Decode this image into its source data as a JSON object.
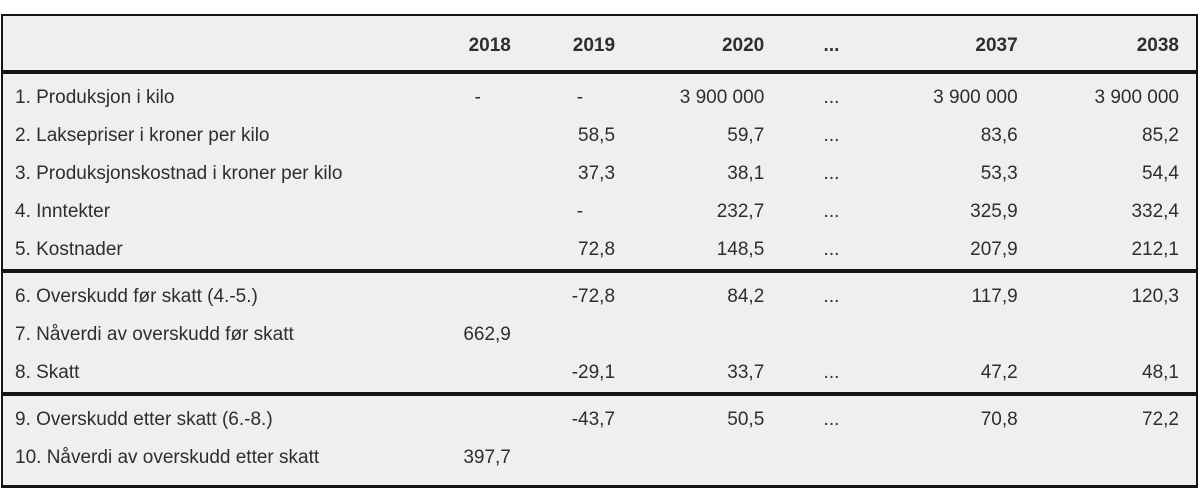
{
  "colors": {
    "page_bg": "#ffffff",
    "table_bg": "#efefee",
    "border": "#141414",
    "text": "#2e2e2e"
  },
  "table": {
    "header": [
      "",
      "2018",
      "2019",
      "2020",
      "...",
      "2037",
      "2038"
    ],
    "sections": [
      {
        "rows": [
          [
            "1. Produksjon i kilo",
            "-",
            "-",
            "3 900 000",
            "...",
            "3 900 000",
            "3 900 000"
          ],
          [
            "2. Laksepriser i kroner per kilo",
            "",
            "58,5",
            "59,7",
            "...",
            "83,6",
            "85,2"
          ],
          [
            "3. Produksjonskostnad i kroner per kilo",
            "",
            "37,3",
            "38,1",
            "...",
            "53,3",
            "54,4"
          ],
          [
            "4. Inntekter",
            "",
            "-",
            "232,7",
            "...",
            "325,9",
            "332,4"
          ],
          [
            "5. Kostnader",
            "",
            "72,8",
            "148,5",
            "...",
            "207,9",
            "212,1"
          ]
        ]
      },
      {
        "rows": [
          [
            "6. Overskudd før skatt (4.-5.)",
            "",
            "-72,8",
            "84,2",
            "...",
            "117,9",
            "120,3"
          ],
          [
            "7. Nåverdi av overskudd før skatt",
            "662,9",
            "",
            "",
            "",
            "",
            ""
          ],
          [
            "8. Skatt",
            "",
            "-29,1",
            "33,7",
            "...",
            "47,2",
            "48,1"
          ]
        ]
      },
      {
        "rows": [
          [
            "9. Overskudd etter skatt (6.-8.)",
            "",
            "-43,7",
            "50,5",
            "...",
            "70,8",
            "72,2"
          ],
          [
            "10. Nåverdi av overskudd etter skatt",
            "397,7",
            "",
            "",
            "",
            "",
            ""
          ]
        ]
      }
    ]
  }
}
